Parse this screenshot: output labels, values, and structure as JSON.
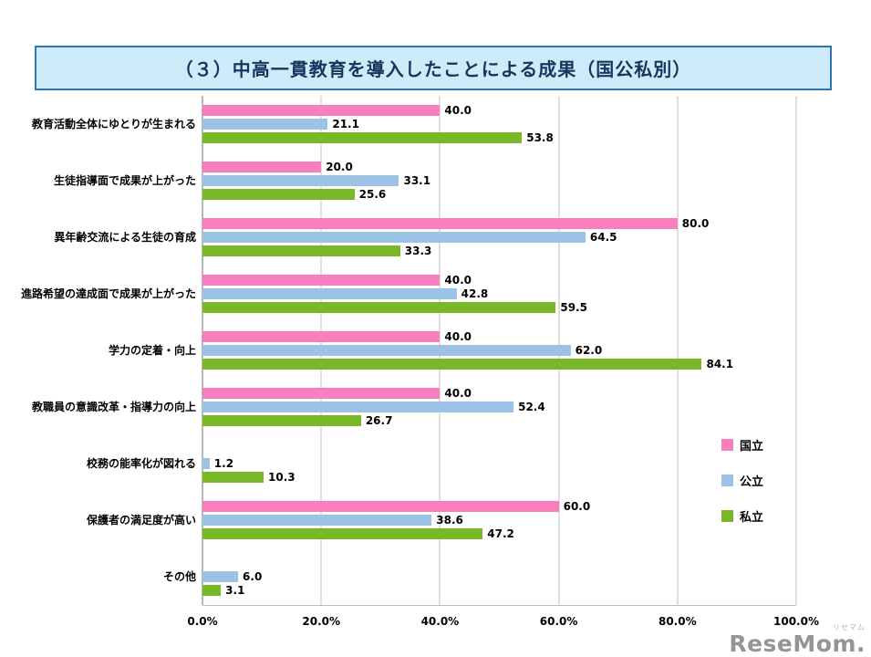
{
  "title": "（３）中高一貫教育を導入したことによる成果（国公私別）",
  "watermark": {
    "small": "リセマム",
    "text": "ReseMom."
  },
  "chart_data": {
    "type": "bar",
    "orientation": "horizontal",
    "title": "（３）中高一貫教育を導入したことによる成果（国公私別）",
    "categories": [
      "教育活動全体にゆとりが生まれる",
      "生徒指導面で成果が上がった",
      "異年齢交流による生徒の育成",
      "進路希望の達成面で成果が上がった",
      "学力の定着・向上",
      "教職員の意識改革・指導力の向上",
      "校務の能率化が図れる",
      "保護者の満足度が高い",
      "その他"
    ],
    "series": [
      {
        "name": "国立",
        "color": "#F97EBE",
        "values": [
          40.0,
          20.0,
          80.0,
          40.0,
          40.0,
          40.0,
          null,
          60.0,
          null
        ]
      },
      {
        "name": "公立",
        "color": "#9CC2E5",
        "values": [
          21.1,
          33.1,
          64.5,
          42.8,
          62.0,
          52.4,
          1.2,
          38.6,
          6.0
        ]
      },
      {
        "name": "私立",
        "color": "#79B928",
        "values": [
          53.8,
          25.6,
          33.3,
          59.5,
          84.1,
          26.7,
          10.3,
          47.2,
          3.1
        ]
      }
    ],
    "x_ticks": [
      "0.0%",
      "20.0%",
      "40.0%",
      "60.0%",
      "80.0%",
      "100.0%"
    ],
    "xlim": [
      0,
      100
    ],
    "grid": true,
    "legend_position": "right-middle"
  }
}
